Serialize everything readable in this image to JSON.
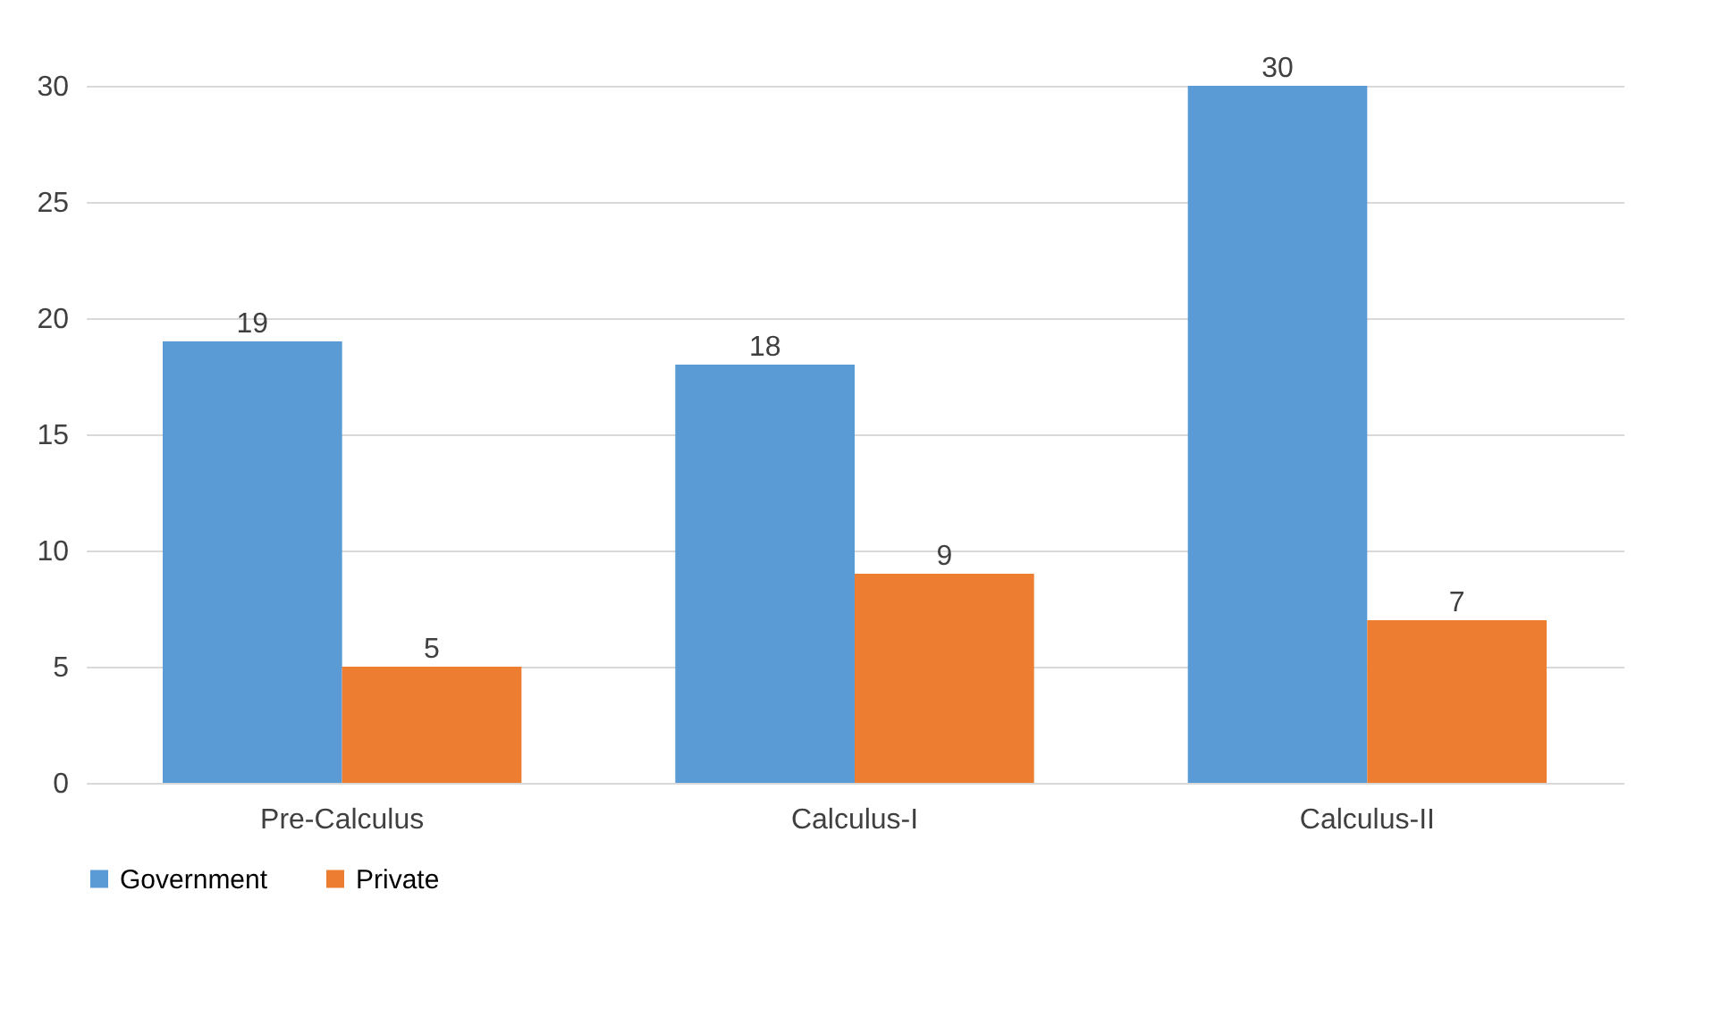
{
  "chart_data": {
    "type": "bar",
    "categories": [
      "Pre-Calculus",
      "Calculus-I",
      "Calculus-II"
    ],
    "series": [
      {
        "name": "Government",
        "color": "#5b9bd5",
        "values": [
          19,
          18,
          30
        ]
      },
      {
        "name": "Private",
        "color": "#ed7d31",
        "values": [
          5,
          9,
          7
        ]
      }
    ],
    "ylim": [
      0,
      30
    ],
    "yticks": [
      0,
      5,
      10,
      15,
      20,
      25,
      30
    ],
    "grid": "y",
    "legend": "bottom",
    "data_labels": true
  }
}
